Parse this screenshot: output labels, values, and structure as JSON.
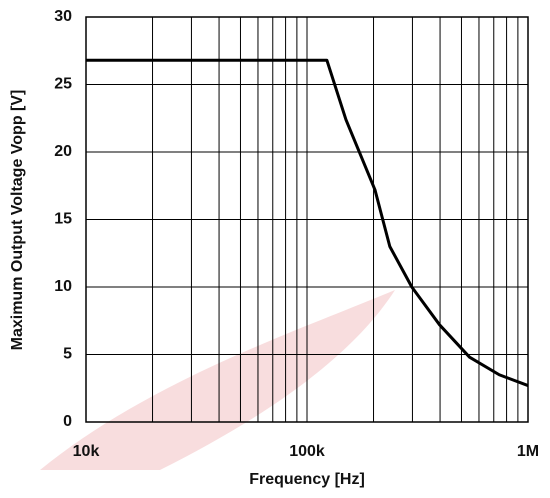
{
  "chart_data": {
    "type": "line",
    "x_label": "Frequency [Hz]",
    "y_label": "Maximum Output Voltage Vopp [V]",
    "x": [
      10000,
      50000,
      100000,
      123000,
      150000,
      203000,
      237000,
      298000,
      398000,
      544000,
      741000,
      1000000
    ],
    "series": [
      {
        "color": "#000000",
        "values": [
          26.8,
          26.8,
          26.8,
          26.8,
          22.4,
          17.2,
          13,
          10,
          7.2,
          4.8,
          3.5,
          2.7
        ]
      }
    ],
    "xlim": [
      10000,
      1000000
    ],
    "log_x": true,
    "xticks": [
      {
        "value": 10000,
        "label": "10k"
      },
      {
        "value": 100000,
        "label": "100k"
      },
      {
        "value": 1000000,
        "label": "1M"
      }
    ],
    "xminor": [
      20000,
      30000,
      40000,
      50000,
      60000,
      70000,
      80000,
      90000,
      200000,
      300000,
      400000,
      500000,
      600000,
      700000,
      800000,
      900000
    ],
    "ylim": [
      0,
      30
    ],
    "yticks": [
      0,
      5,
      10,
      15,
      20,
      25,
      30
    ],
    "grid": true
  }
}
